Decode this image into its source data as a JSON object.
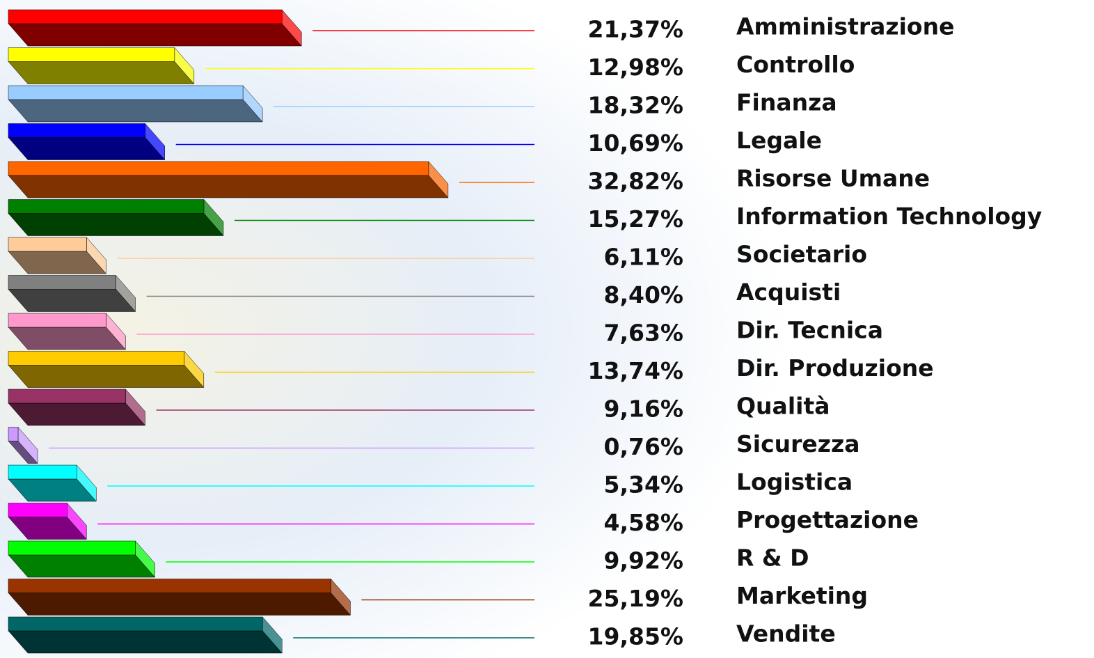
{
  "chart_data": {
    "type": "bar",
    "orientation": "horizontal",
    "categories": [
      "Amministrazione",
      "Controllo",
      "Finanza",
      "Legale",
      "Risorse Umane",
      "Information Technology",
      "Societario",
      "Acquisti",
      "Dir. Tecnica",
      "Dir. Produzione",
      "Qualità",
      "Sicurezza",
      "Logistica",
      "Progettazione",
      "R & D",
      "Marketing",
      "Vendite"
    ],
    "values": [
      21.37,
      12.98,
      18.32,
      10.69,
      32.82,
      15.27,
      6.11,
      8.4,
      7.63,
      13.74,
      9.16,
      0.76,
      5.34,
      4.58,
      9.92,
      25.19,
      19.85
    ],
    "value_labels": [
      "21,37%",
      "12,98%",
      "18,32%",
      "10,69%",
      "32,82%",
      "15,27%",
      "6,11%",
      "8,40%",
      "7,63%",
      "13,74%",
      "9,16%",
      "0,76%",
      "5,34%",
      "4,58%",
      "9,92%",
      "25,19%",
      "19,85%"
    ],
    "colors": [
      "#ff0000",
      "#ffff00",
      "#99ccff",
      "#0000ff",
      "#ff6600",
      "#008000",
      "#ffcc99",
      "#808080",
      "#ff99cc",
      "#ffcc00",
      "#993366",
      "#cc99ff",
      "#00ffff",
      "#ff00ff",
      "#00ff00",
      "#993300",
      "#006666"
    ],
    "front_colors": [
      "#800000",
      "#808000",
      "#4d6680",
      "#000080",
      "#803300",
      "#004000",
      "#80664d",
      "#404040",
      "#804d66",
      "#806600",
      "#4d1a33",
      "#664d80",
      "#008080",
      "#800080",
      "#008000",
      "#4d1a00",
      "#003333"
    ]
  }
}
